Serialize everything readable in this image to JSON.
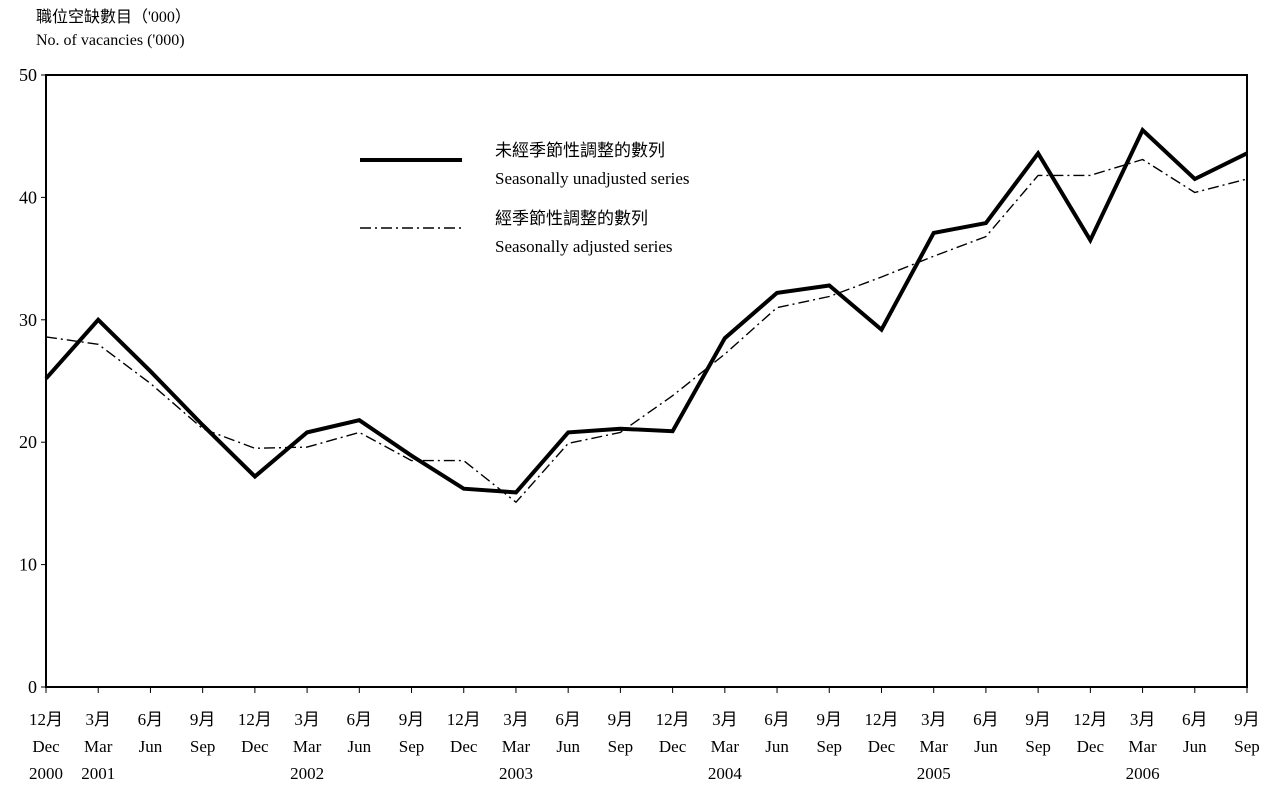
{
  "chart_data": {
    "type": "line",
    "ylabel": [
      "職位空缺數目（'000）",
      "No. of vacancies ('000)"
    ],
    "xlabel": "",
    "ylim": [
      0,
      50
    ],
    "yticks": [
      0,
      10,
      20,
      30,
      40,
      50
    ],
    "grid": false,
    "legend_placement": "top-center",
    "categories": [
      {
        "zh": "12月",
        "en": "Dec",
        "year": "2000"
      },
      {
        "zh": "3月",
        "en": "Mar",
        "year": "2001"
      },
      {
        "zh": "6月",
        "en": "Jun",
        "year": ""
      },
      {
        "zh": "9月",
        "en": "Sep",
        "year": ""
      },
      {
        "zh": "12月",
        "en": "Dec",
        "year": ""
      },
      {
        "zh": "3月",
        "en": "Mar",
        "year": "2002"
      },
      {
        "zh": "6月",
        "en": "Jun",
        "year": ""
      },
      {
        "zh": "9月",
        "en": "Sep",
        "year": ""
      },
      {
        "zh": "12月",
        "en": "Dec",
        "year": ""
      },
      {
        "zh": "3月",
        "en": "Mar",
        "year": "2003"
      },
      {
        "zh": "6月",
        "en": "Jun",
        "year": ""
      },
      {
        "zh": "9月",
        "en": "Sep",
        "year": ""
      },
      {
        "zh": "12月",
        "en": "Dec",
        "year": ""
      },
      {
        "zh": "3月",
        "en": "Mar",
        "year": "2004"
      },
      {
        "zh": "6月",
        "en": "Jun",
        "year": ""
      },
      {
        "zh": "9月",
        "en": "Sep",
        "year": ""
      },
      {
        "zh": "12月",
        "en": "Dec",
        "year": ""
      },
      {
        "zh": "3月",
        "en": "Mar",
        "year": "2005"
      },
      {
        "zh": "6月",
        "en": "Jun",
        "year": ""
      },
      {
        "zh": "9月",
        "en": "Sep",
        "year": ""
      },
      {
        "zh": "12月",
        "en": "Dec",
        "year": ""
      },
      {
        "zh": "3月",
        "en": "Mar",
        "year": "2006"
      },
      {
        "zh": "6月",
        "en": "Jun",
        "year": ""
      },
      {
        "zh": "9月",
        "en": "Sep",
        "year": ""
      }
    ],
    "series": [
      {
        "name_zh": "未經季節性調整的數列",
        "name_en": "Seasonally unadjusted series",
        "style": "solid-thick",
        "values": [
          25.2,
          30.0,
          25.8,
          21.4,
          17.2,
          20.8,
          21.8,
          18.9,
          16.2,
          15.9,
          20.8,
          21.1,
          20.9,
          28.5,
          32.2,
          32.8,
          29.2,
          37.1,
          37.9,
          43.6,
          36.5,
          45.5,
          41.5,
          43.6
        ]
      },
      {
        "name_zh": "經季節性調整的數列",
        "name_en": "Seasonally adjusted series",
        "style": "dash-dot",
        "values": [
          28.6,
          28.0,
          24.8,
          21.1,
          19.5,
          19.6,
          20.8,
          18.5,
          18.5,
          15.1,
          19.9,
          20.8,
          23.8,
          27.2,
          31.0,
          31.9,
          33.5,
          35.2,
          36.8,
          41.8,
          41.8,
          43.1,
          40.4,
          41.5
        ]
      }
    ]
  }
}
